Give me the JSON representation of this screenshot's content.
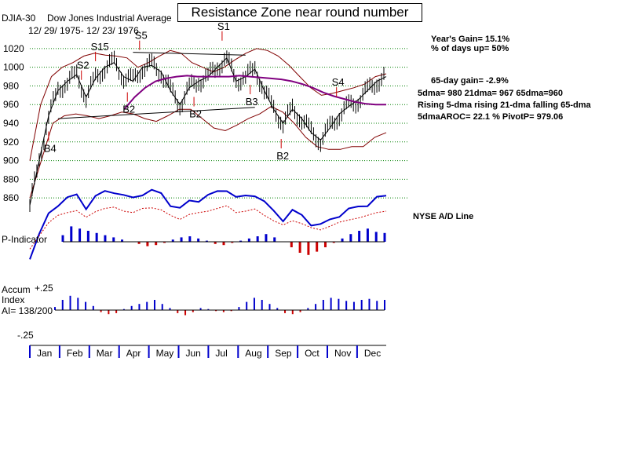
{
  "chart_data": {
    "type": "line",
    "title": "Resistance Zone near round number",
    "index_name": "DJIA-30",
    "index_desc": "Dow Jones Industrial Average",
    "date_range": "12/ 29/ 1975- 12/ 23/ 1976",
    "months": [
      "Jan",
      "Feb",
      "Mar",
      "Apr",
      "May",
      "Jun",
      "Jul",
      "Aug",
      "Sep",
      "Oct",
      "Nov",
      "Dec"
    ],
    "y_ticks": [
      860,
      880,
      900,
      920,
      940,
      960,
      980,
      1000,
      1020
    ],
    "ylim": [
      845,
      1030
    ],
    "price": [
      852,
      900,
      948,
      975,
      985,
      992,
      968,
      988,
      1000,
      1005,
      990,
      985,
      1000,
      1002,
      995,
      975,
      960,
      978,
      985,
      990,
      1000,
      1010,
      985,
      990,
      998,
      975,
      955,
      940,
      955,
      945,
      930,
      922,
      935,
      950,
      958,
      965,
      975,
      985,
      990
    ],
    "sma65": [
      null,
      null,
      null,
      null,
      null,
      null,
      null,
      null,
      null,
      955,
      968,
      978,
      985,
      988,
      990,
      991,
      990,
      990,
      990,
      990,
      991,
      990,
      989,
      988,
      987,
      985,
      982,
      978,
      973,
      969,
      966,
      963,
      961,
      960,
      960
    ],
    "upper_band": [
      900,
      960,
      990,
      1000,
      1005,
      1012,
      1015,
      1013,
      1012,
      1010,
      1000,
      1005,
      1012,
      1018,
      1015,
      1005,
      1000,
      995,
      1000,
      1008,
      1015,
      1020,
      1018,
      1012,
      1002,
      990,
      978,
      970,
      972,
      975,
      978,
      982,
      990,
      993
    ],
    "lower_band": [
      860,
      900,
      940,
      948,
      950,
      948,
      945,
      948,
      952,
      950,
      945,
      942,
      948,
      955,
      955,
      945,
      935,
      932,
      938,
      945,
      950,
      958,
      952,
      940,
      925,
      915,
      912,
      912,
      915,
      915,
      925,
      930
    ],
    "support_line": {
      "from": [
        3,
        945
      ],
      "to": [
        24,
        957
      ]
    },
    "resistance_line": {
      "from": [
        11,
        1016
      ],
      "to": [
        23,
        1013
      ]
    },
    "signals": [
      {
        "label": "B4",
        "pos": 2
      },
      {
        "label": "B2",
        "pos": 10.4
      },
      {
        "label": "S5",
        "pos": 11.7
      },
      {
        "label": "S2",
        "pos": 5.5
      },
      {
        "label": "S15",
        "pos": 7
      },
      {
        "label": "B2",
        "pos": 17.5
      },
      {
        "label": "S1",
        "pos": 20.5
      },
      {
        "label": "B3",
        "pos": 23.5
      },
      {
        "label": "B2",
        "pos": 26.8
      },
      {
        "label": "S4",
        "pos": 32.7
      }
    ],
    "ad_line_label": "NYSE A/D Line",
    "p_indicator_label": "P-Indicator",
    "p_indicator": [
      6,
      14,
      12,
      10,
      8,
      6,
      4,
      2,
      0,
      -2,
      -4,
      -3,
      -1,
      2,
      4,
      5,
      3,
      1,
      -2,
      -3,
      -1,
      1,
      3,
      5,
      7,
      4,
      0,
      -5,
      -10,
      -12,
      -9,
      -5,
      -1,
      3,
      7,
      10,
      12,
      9,
      8
    ],
    "accum_label": "Accum",
    "index_label": "Index",
    "ai_value": "AI= 138/200",
    "accum_ticks": [
      "+.25",
      "-.25"
    ],
    "accum_index": [
      3,
      10,
      14,
      12,
      8,
      4,
      -2,
      -4,
      -3,
      1,
      4,
      6,
      8,
      10,
      6,
      2,
      -3,
      -5,
      -2,
      2,
      1,
      -1,
      -2,
      -1,
      3,
      8,
      12,
      10,
      6,
      2,
      -3,
      -4,
      -2,
      2,
      6,
      10,
      12,
      11,
      9,
      8,
      10,
      11,
      9,
      10
    ]
  },
  "stats": {
    "year_gain": "Year's Gain= 15.1%",
    "days_up": "% of days up= 50%",
    "gain65": "65-day gain= -2.9%",
    "dma": "5dma= 980  21dma= 967  65dma=960",
    "trend": "Rising 5-dma  rising 21-dma  falling 65-dma",
    "aroc": "5dmaAROC= 22.1 %  PivotP= 979.06"
  },
  "colors": {
    "price": "#000000",
    "grid": "#008000",
    "band": "#800000",
    "sma65": "#800080",
    "ad_line": "#0000cc",
    "ad_dotted": "#cc0000",
    "signal": "#cc0000",
    "indicator_pos": "#0000cc",
    "indicator_neg": "#cc0000"
  }
}
